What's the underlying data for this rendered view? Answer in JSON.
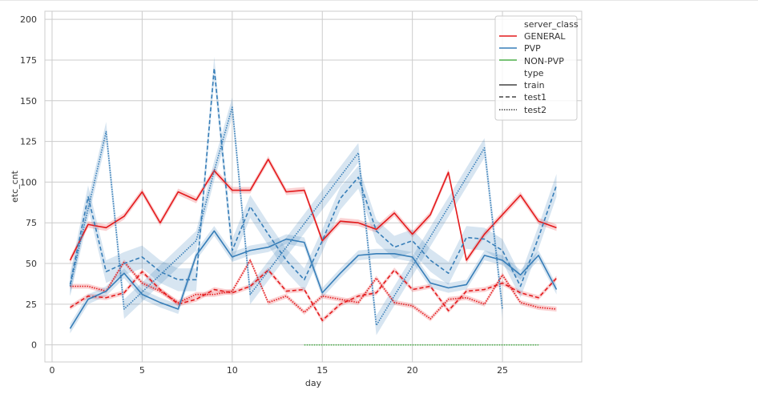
{
  "chart_data": {
    "type": "line",
    "title": "",
    "xlabel": "day",
    "ylabel": "etc_cnt",
    "xlim": [
      -0.4,
      29.4
    ],
    "ylim": [
      -10.5,
      205
    ],
    "xticks": [
      0,
      5,
      10,
      15,
      20,
      25
    ],
    "yticks": [
      0,
      25,
      50,
      75,
      100,
      125,
      150,
      175,
      200
    ],
    "grid": true,
    "legend": {
      "placement": "top-right",
      "hue_title": "server_class",
      "style_title": "type",
      "hue_entries": [
        {
          "label": "GENERAL",
          "color": "#e41a1c"
        },
        {
          "label": "PVP",
          "color": "#377eb8"
        },
        {
          "label": "NON-PVP",
          "color": "#4daf4a"
        }
      ],
      "style_entries": [
        {
          "label": "train",
          "dash": "solid"
        },
        {
          "label": "test1",
          "dash": "dashed"
        },
        {
          "label": "test2",
          "dash": "dotted"
        }
      ]
    },
    "series": [
      {
        "name": "GENERAL train",
        "class": "GENERAL",
        "style": "train",
        "color": "#e41a1c",
        "x": [
          1,
          2,
          3,
          4,
          5,
          6,
          7,
          8,
          9,
          10,
          11,
          12,
          13,
          14,
          15,
          16,
          17,
          18,
          19,
          20,
          21,
          22,
          23,
          24,
          25,
          26,
          27,
          28
        ],
        "y": [
          52,
          74,
          72,
          79,
          94,
          75,
          94,
          89,
          107,
          95,
          95,
          114,
          94,
          95,
          64,
          76,
          75,
          71,
          81,
          68,
          80,
          106,
          52,
          68,
          80,
          92,
          76,
          72
        ],
        "band": 2
      },
      {
        "name": "GENERAL test1",
        "class": "GENERAL",
        "style": "test1",
        "color": "#e41a1c",
        "x": [
          1,
          2,
          3,
          4,
          5,
          6,
          7,
          8,
          9,
          10,
          11,
          12,
          13,
          14,
          15,
          16,
          17,
          18,
          19,
          20,
          21,
          22,
          23,
          24,
          25,
          26,
          27,
          28
        ],
        "y": [
          23,
          30,
          29,
          32,
          45,
          34,
          25,
          28,
          34,
          32,
          36,
          46,
          33,
          34,
          15,
          25,
          30,
          32,
          46,
          34,
          36,
          21,
          33,
          34,
          38,
          32,
          29,
          41
        ],
        "band": 1.5
      },
      {
        "name": "GENERAL test2",
        "class": "GENERAL",
        "style": "test2",
        "color": "#e41a1c",
        "x": [
          1,
          2,
          3,
          4,
          5,
          6,
          7,
          8,
          9,
          10,
          11,
          12,
          13,
          14,
          15,
          16,
          17,
          18,
          19,
          20,
          21,
          22,
          23,
          24,
          25,
          26,
          27,
          28
        ],
        "y": [
          36,
          36,
          33,
          51,
          38,
          33,
          26,
          31,
          31,
          33,
          52,
          26,
          30,
          20,
          30,
          28,
          26,
          41,
          26,
          24,
          16,
          28,
          29,
          25,
          43,
          26,
          23,
          22
        ],
        "band": 1.5
      },
      {
        "name": "PVP train",
        "class": "PVP",
        "style": "train",
        "color": "#377eb8",
        "x": [
          1,
          2,
          3,
          4,
          5,
          6,
          7,
          8,
          9,
          10,
          11,
          12,
          13,
          14,
          15,
          16,
          17,
          18,
          19,
          20,
          21,
          22,
          23,
          24,
          25,
          26,
          27,
          28
        ],
        "y": [
          10,
          28,
          33,
          44,
          31,
          26,
          22,
          55,
          70,
          54,
          58,
          60,
          65,
          63,
          32,
          44,
          55,
          56,
          56,
          54,
          38,
          35,
          37,
          55,
          52,
          43,
          55,
          34
        ],
        "band": 3
      },
      {
        "name": "PVP test1",
        "class": "PVP",
        "style": "test1",
        "color": "#377eb8",
        "x": [
          1,
          2,
          3,
          4,
          5,
          6,
          7,
          8,
          9,
          10,
          11,
          12,
          13,
          14,
          15,
          16,
          17,
          18,
          19,
          20,
          21,
          22,
          23,
          24,
          25,
          26,
          27,
          28
        ],
        "y": [
          37,
          91,
          45,
          50,
          54,
          45,
          40,
          40,
          170,
          58,
          85,
          68,
          52,
          40,
          64,
          90,
          103,
          70,
          60,
          64,
          52,
          44,
          66,
          65,
          58,
          36,
          66,
          98
        ],
        "band": 7
      },
      {
        "name": "PVP test2",
        "class": "PVP",
        "style": "test2",
        "color": "#377eb8",
        "x": [
          1,
          3,
          4,
          8,
          9,
          10,
          11,
          17,
          18,
          24,
          25
        ],
        "y": [
          36,
          131,
          22,
          64,
          107,
          146,
          31,
          118,
          12,
          121,
          22
        ],
        "band": 6
      },
      {
        "name": "NON-PVP test2",
        "class": "NON-PVP",
        "style": "test2",
        "color": "#4daf4a",
        "x": [
          14,
          15,
          16,
          17,
          18,
          19,
          20,
          21,
          22,
          23,
          24,
          25,
          26,
          27
        ],
        "y": [
          0,
          0,
          0,
          0,
          0,
          0,
          0,
          0,
          0,
          0,
          0,
          0,
          0,
          0
        ],
        "band": 0
      }
    ]
  }
}
